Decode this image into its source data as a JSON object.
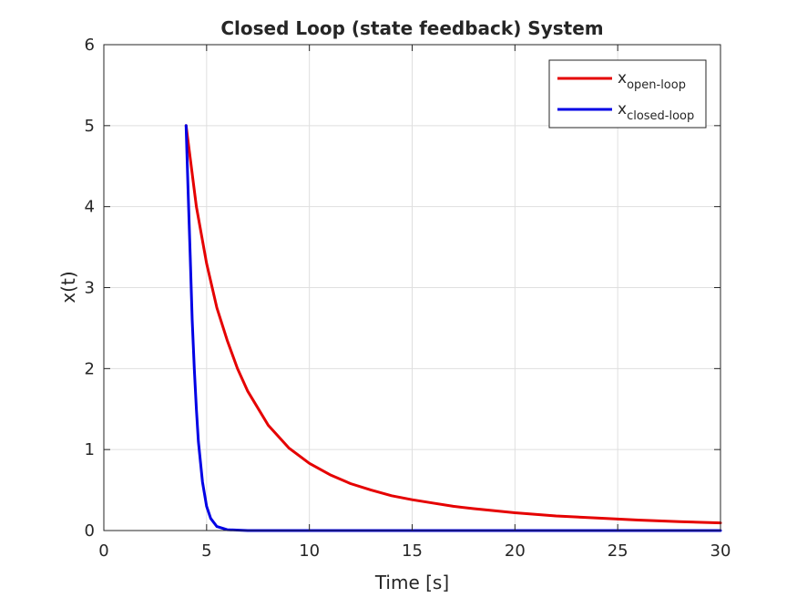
{
  "chart_data": {
    "type": "line",
    "title": "Closed Loop (state feedback) System",
    "xlabel": "Time [s]",
    "ylabel": "x(t)",
    "xlim": [
      0,
      30
    ],
    "ylim": [
      0,
      6
    ],
    "xticks": [
      0,
      5,
      10,
      15,
      20,
      25,
      30
    ],
    "yticks": [
      0,
      1,
      2,
      3,
      4,
      5,
      6
    ],
    "grid": true,
    "legend_position": "top-right",
    "series": [
      {
        "name_base": "x",
        "name_sub": "open-loop",
        "color": "#e50000",
        "x": [
          4.0,
          4.5,
          5.0,
          5.5,
          6.0,
          6.5,
          7.0,
          8.0,
          9.0,
          10.0,
          11.0,
          12.0,
          13.0,
          14.0,
          15.0,
          16.0,
          17.0,
          18.0,
          19.0,
          20.0,
          22.0,
          24.0,
          26.0,
          28.0,
          30.0
        ],
        "y": [
          5.0,
          4.0,
          3.3,
          2.75,
          2.35,
          2.0,
          1.72,
          1.3,
          1.02,
          0.83,
          0.69,
          0.58,
          0.5,
          0.43,
          0.38,
          0.34,
          0.3,
          0.27,
          0.245,
          0.22,
          0.18,
          0.155,
          0.13,
          0.11,
          0.095
        ]
      },
      {
        "name_base": "x",
        "name_sub": "closed-loop",
        "color": "#0000e5",
        "x": [
          4.0,
          4.05,
          4.1,
          4.2,
          4.3,
          4.4,
          4.5,
          4.6,
          4.8,
          5.0,
          5.2,
          5.5,
          6.0,
          7.0,
          10.0,
          15.0,
          20.0,
          25.0,
          30.0
        ],
        "y": [
          5.0,
          4.6,
          4.2,
          3.4,
          2.6,
          2.0,
          1.5,
          1.1,
          0.6,
          0.3,
          0.15,
          0.05,
          0.01,
          0.0,
          0.0,
          0.0,
          0.0,
          0.0,
          0.0
        ]
      }
    ]
  }
}
